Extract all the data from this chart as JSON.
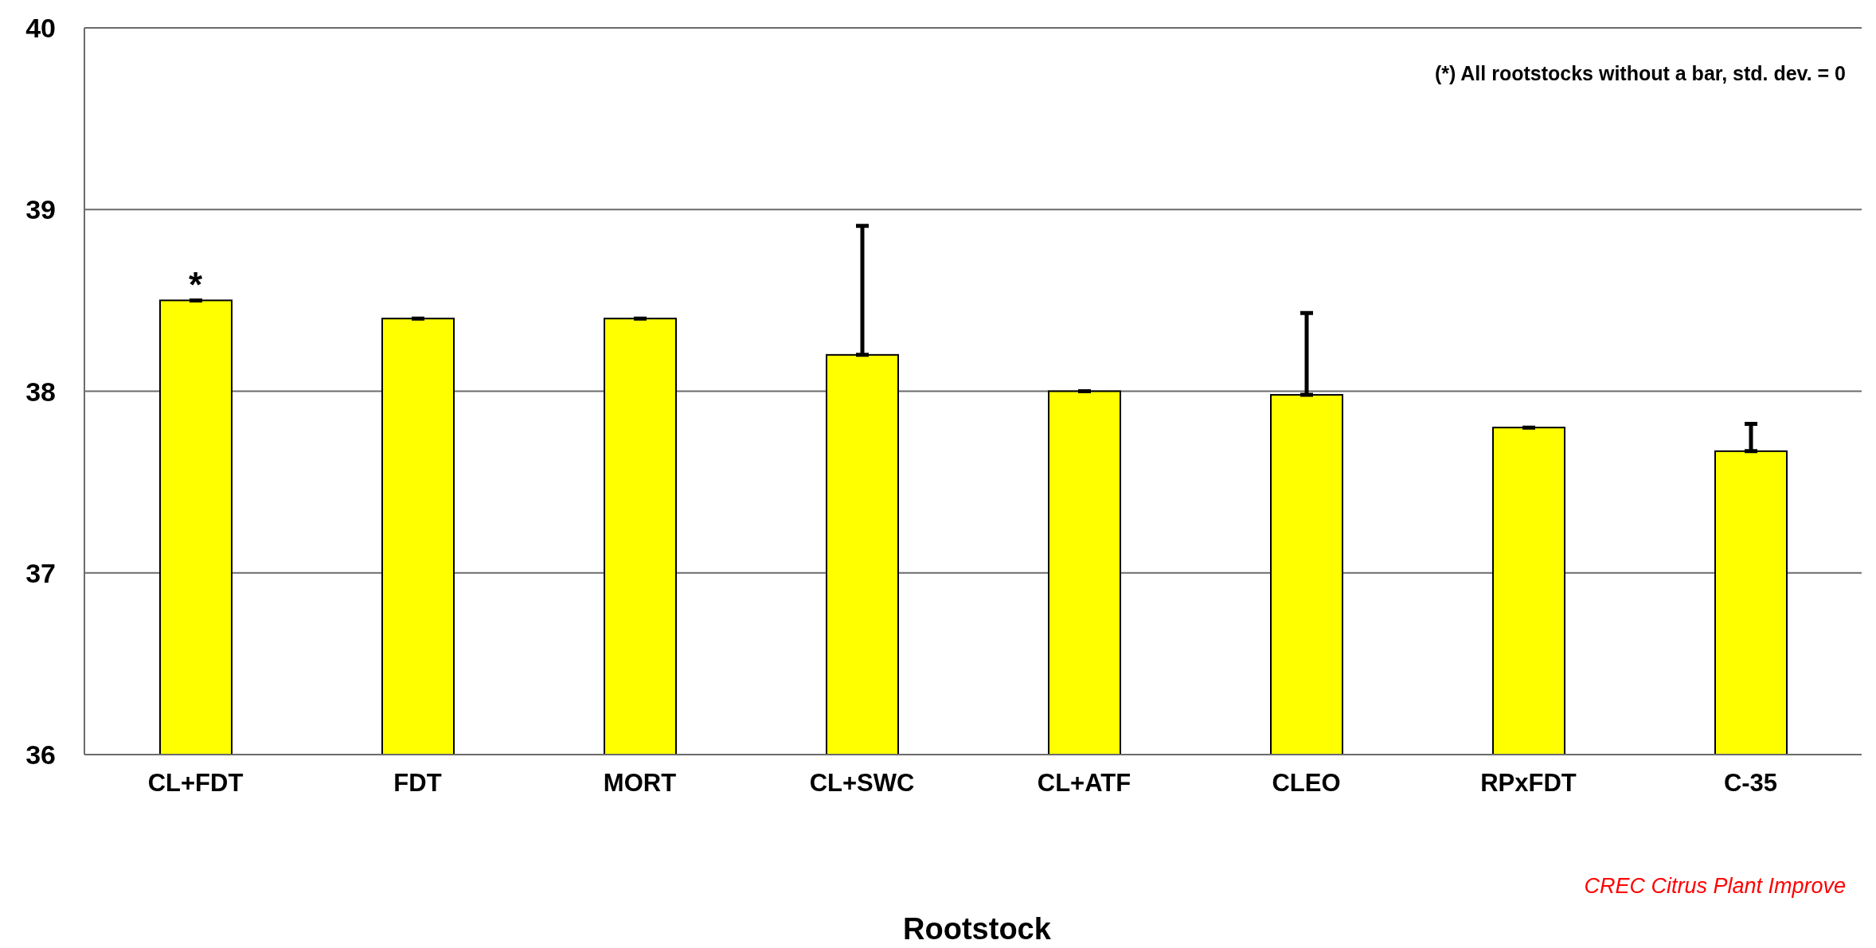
{
  "chart_data": {
    "type": "bar",
    "xlabel": "Rootstock",
    "categories": [
      "CL+FDT",
      "FDT",
      "MORT",
      "CL+SWC",
      "CL+ATF",
      "CLEO",
      "RPxFDT",
      "C-35"
    ],
    "values": [
      38.5,
      38.4,
      38.4,
      38.2,
      38.0,
      37.98,
      37.8,
      37.67
    ],
    "errors": [
      0,
      0,
      0,
      [
        38.2,
        38.91
      ],
      0,
      [
        37.98,
        38.43
      ],
      0,
      [
        37.67,
        37.82
      ]
    ],
    "color": "#ffff00",
    "ylim": [
      36,
      40
    ],
    "yticks": [
      36,
      37,
      38,
      39,
      40
    ],
    "grid": "y",
    "legend": false,
    "annotations": [
      {
        "text": "*",
        "x": "CL+FDT",
        "y": 38.5
      },
      "(*) All rootstocks without a bar, std. dev. = 0",
      "CREC Citrus Plant Improve"
    ]
  }
}
